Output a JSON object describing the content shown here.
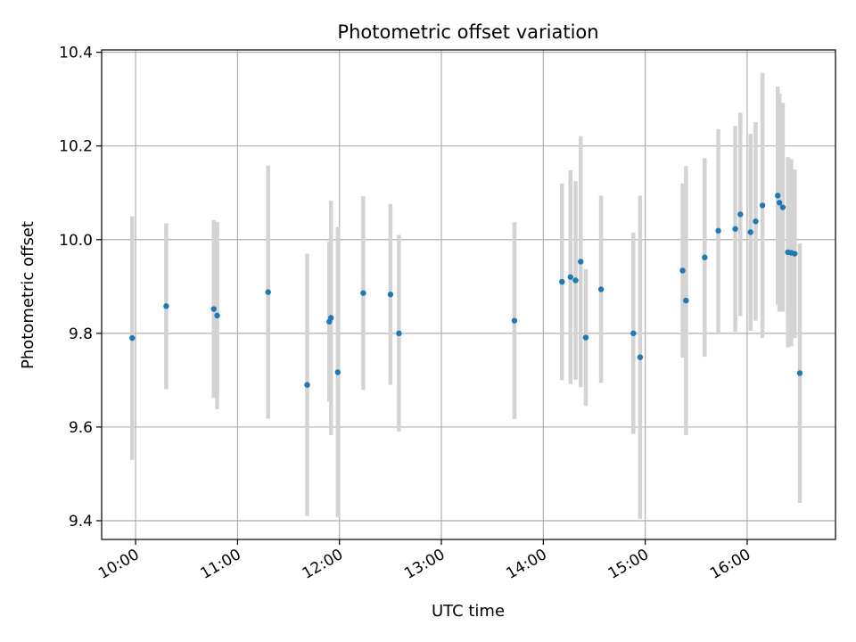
{
  "chart_data": {
    "type": "scatter",
    "title": "Photometric offset variation",
    "xlabel": "UTC time",
    "ylabel": "Photometric offset",
    "x_ticks": [
      "10:00",
      "11:00",
      "12:00",
      "13:00",
      "14:00",
      "15:00",
      "16:00"
    ],
    "y_ticks": [
      "9.4",
      "9.6",
      "9.8",
      "10.0",
      "10.2",
      "10.4"
    ],
    "xlim": [
      "09:40",
      "16:52"
    ],
    "ylim": [
      9.36,
      10.405
    ],
    "grid": true,
    "colors": {
      "point": "#1f77b4",
      "errorbar": "#d3d3d3",
      "grid": "#b0b0b0"
    },
    "points": [
      {
        "x": "09:58",
        "y": 9.79,
        "err": 0.26
      },
      {
        "x": "10:18",
        "y": 9.858,
        "err": 0.177
      },
      {
        "x": "10:46",
        "y": 9.852,
        "err": 0.19
      },
      {
        "x": "10:48",
        "y": 9.838,
        "err": 0.2
      },
      {
        "x": "11:18",
        "y": 9.888,
        "err": 0.27
      },
      {
        "x": "11:41",
        "y": 9.69,
        "err": 0.28
      },
      {
        "x": "11:54",
        "y": 9.825,
        "err": 0.17
      },
      {
        "x": "11:55",
        "y": 9.833,
        "err": 0.25
      },
      {
        "x": "11:59",
        "y": 9.717,
        "err": 0.31
      },
      {
        "x": "12:14",
        "y": 9.886,
        "err": 0.207
      },
      {
        "x": "12:30",
        "y": 9.883,
        "err": 0.193
      },
      {
        "x": "12:35",
        "y": 9.8,
        "err": 0.21
      },
      {
        "x": "13:43",
        "y": 9.827,
        "err": 0.21
      },
      {
        "x": "14:11",
        "y": 9.91,
        "err": 0.21
      },
      {
        "x": "14:16",
        "y": 9.92,
        "err": 0.228
      },
      {
        "x": "14:19",
        "y": 9.913,
        "err": 0.212
      },
      {
        "x": "14:22",
        "y": 9.953,
        "err": 0.268
      },
      {
        "x": "14:25",
        "y": 9.791,
        "err": 0.146
      },
      {
        "x": "14:34",
        "y": 9.894,
        "err": 0.2
      },
      {
        "x": "14:53",
        "y": 9.8,
        "err": 0.215
      },
      {
        "x": "14:57",
        "y": 9.749,
        "err": 0.345
      },
      {
        "x": "15:22",
        "y": 9.934,
        "err": 0.186
      },
      {
        "x": "15:24",
        "y": 9.87,
        "err": 0.287
      },
      {
        "x": "15:35",
        "y": 9.962,
        "err": 0.212
      },
      {
        "x": "15:43",
        "y": 10.019,
        "err": 0.217
      },
      {
        "x": "15:53",
        "y": 10.023,
        "err": 0.22
      },
      {
        "x": "15:56",
        "y": 10.054,
        "err": 0.217
      },
      {
        "x": "16:02",
        "y": 10.016,
        "err": 0.21
      },
      {
        "x": "16:05",
        "y": 10.039,
        "err": 0.212
      },
      {
        "x": "16:09",
        "y": 10.073,
        "err": 0.283
      },
      {
        "x": "16:18",
        "y": 10.094,
        "err": 0.233
      },
      {
        "x": "16:19",
        "y": 10.079,
        "err": 0.233
      },
      {
        "x": "16:21",
        "y": 10.069,
        "err": 0.223
      },
      {
        "x": "16:24",
        "y": 9.973,
        "err": 0.203
      },
      {
        "x": "16:26",
        "y": 9.972,
        "err": 0.2
      },
      {
        "x": "16:28",
        "y": 9.97,
        "err": 0.18
      },
      {
        "x": "16:31",
        "y": 9.715,
        "err": 0.277
      }
    ]
  }
}
